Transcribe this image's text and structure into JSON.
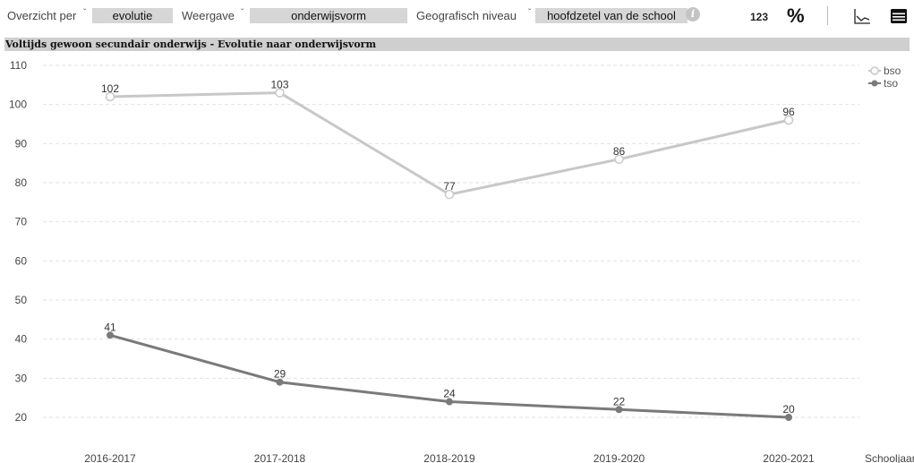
{
  "toolbar": {
    "overview_label": "Overzicht per",
    "overview_value": "evolutie",
    "view_label": "Weergave",
    "view_value": "onderwijsvorm",
    "geo_label": "Geografisch niveau",
    "geo_value": "hoofdzetel van de school",
    "info_icon": "info-icon",
    "count_button_label": "123",
    "percent_button_label": "%",
    "line_chart_icon": "line-chart-icon",
    "table_icon": "table-icon"
  },
  "chart_data": {
    "type": "line",
    "title": "Voltijds gewoon secundair onderwijs - Evolutie naar onderwijsvorm",
    "xlabel": "Schooljaar",
    "ylabel": "",
    "categories": [
      "2016-2017",
      "2017-2018",
      "2018-2019",
      "2019-2020",
      "2020-2021"
    ],
    "ylim": [
      20,
      110
    ],
    "yticks": [
      20,
      30,
      40,
      50,
      60,
      70,
      80,
      90,
      100,
      110
    ],
    "grid": true,
    "legend_position": "top-right",
    "series": [
      {
        "name": "bso",
        "values": [
          102,
          103,
          77,
          86,
          96
        ],
        "color": "#c8c8c8",
        "marker": "open-circle"
      },
      {
        "name": "tso",
        "values": [
          41,
          29,
          24,
          22,
          20
        ],
        "color": "#7a7a7a",
        "marker": "filled-circle"
      }
    ]
  }
}
